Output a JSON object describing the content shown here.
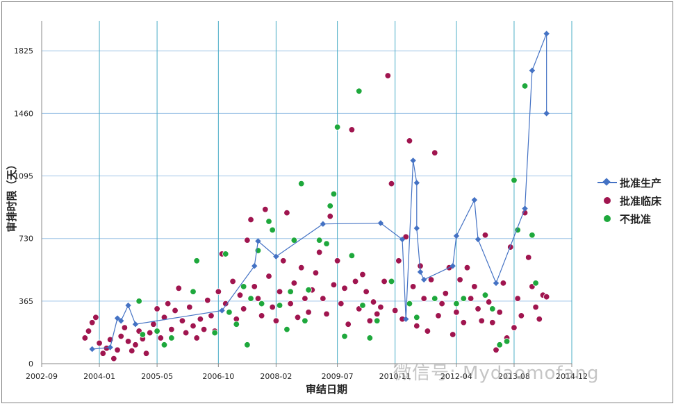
{
  "chart_data": {
    "type": "scatter",
    "xlabel": "审结日期",
    "ylabel": "审排时限（天）",
    "x_ticks": [
      "2002-09",
      "2004-01",
      "2005-05",
      "2006-10",
      "2008-02",
      "2009-07",
      "2010-11",
      "2012-04",
      "2013-08",
      "2014-12"
    ],
    "y_ticks": [
      0,
      365,
      730,
      1095,
      1460,
      1825
    ],
    "xlim": [
      "2002-09",
      "2014-12"
    ],
    "ylim": [
      0,
      2000
    ],
    "grid": {
      "x": true,
      "y": true
    },
    "legend_position": "right",
    "series": [
      {
        "name": "批准生产",
        "style": "line-diamond",
        "color": "#4472c4",
        "points": [
          [
            "2003-11",
            85
          ],
          [
            "2004-04",
            95
          ],
          [
            "2004-06",
            265
          ],
          [
            "2004-07",
            250
          ],
          [
            "2004-09",
            340
          ],
          [
            "2004-11",
            230
          ],
          [
            "2006-11",
            310
          ],
          [
            "2007-08",
            570
          ],
          [
            "2007-09",
            715
          ],
          [
            "2008-02",
            625
          ],
          [
            "2009-03",
            815
          ],
          [
            "2010-07",
            820
          ],
          [
            "2011-01",
            725
          ],
          [
            "2011-02",
            260
          ],
          [
            "2011-04",
            1185
          ],
          [
            "2011-05",
            1055
          ],
          [
            "2011-05",
            790
          ],
          [
            "2011-06",
            535
          ],
          [
            "2011-07",
            490
          ],
          [
            "2012-03",
            570
          ],
          [
            "2012-04",
            745
          ],
          [
            "2012-09",
            955
          ],
          [
            "2012-10",
            725
          ],
          [
            "2013-03",
            470
          ],
          [
            "2013-11",
            905
          ],
          [
            "2014-01",
            1710
          ],
          [
            "2014-05",
            1925
          ],
          [
            "2014-05",
            1460
          ]
        ]
      },
      {
        "name": "批准临床",
        "style": "dot",
        "color": "#a0154f",
        "points": [
          [
            "2003-09",
            150
          ],
          [
            "2003-10",
            190
          ],
          [
            "2003-11",
            240
          ],
          [
            "2003-12",
            270
          ],
          [
            "2004-01",
            120
          ],
          [
            "2004-02",
            60
          ],
          [
            "2004-03",
            90
          ],
          [
            "2004-04",
            140
          ],
          [
            "2004-05",
            30
          ],
          [
            "2004-06",
            80
          ],
          [
            "2004-07",
            160
          ],
          [
            "2004-08",
            210
          ],
          [
            "2004-09",
            130
          ],
          [
            "2004-10",
            75
          ],
          [
            "2004-11",
            110
          ],
          [
            "2004-12",
            190
          ],
          [
            "2005-01",
            145
          ],
          [
            "2005-02",
            60
          ],
          [
            "2005-03",
            180
          ],
          [
            "2005-04",
            230
          ],
          [
            "2005-05",
            320
          ],
          [
            "2005-06",
            150
          ],
          [
            "2005-07",
            270
          ],
          [
            "2005-08",
            350
          ],
          [
            "2005-09",
            200
          ],
          [
            "2005-10",
            310
          ],
          [
            "2005-11",
            440
          ],
          [
            "2005-12",
            250
          ],
          [
            "2006-01",
            180
          ],
          [
            "2006-02",
            330
          ],
          [
            "2006-03",
            220
          ],
          [
            "2006-04",
            150
          ],
          [
            "2006-05",
            260
          ],
          [
            "2006-06",
            200
          ],
          [
            "2006-07",
            370
          ],
          [
            "2006-08",
            280
          ],
          [
            "2006-09",
            190
          ],
          [
            "2006-10",
            420
          ],
          [
            "2006-11",
            640
          ],
          [
            "2006-12",
            350
          ],
          [
            "2007-01",
            300
          ],
          [
            "2007-02",
            480
          ],
          [
            "2007-03",
            260
          ],
          [
            "2007-04",
            400
          ],
          [
            "2007-05",
            320
          ],
          [
            "2007-06",
            720
          ],
          [
            "2007-07",
            840
          ],
          [
            "2007-08",
            450
          ],
          [
            "2007-09",
            380
          ],
          [
            "2007-10",
            280
          ],
          [
            "2007-11",
            900
          ],
          [
            "2007-12",
            510
          ],
          [
            "2008-01",
            330
          ],
          [
            "2008-02",
            250
          ],
          [
            "2008-03",
            420
          ],
          [
            "2008-04",
            600
          ],
          [
            "2008-05",
            880
          ],
          [
            "2008-06",
            350
          ],
          [
            "2008-07",
            470
          ],
          [
            "2008-08",
            270
          ],
          [
            "2008-09",
            560
          ],
          [
            "2008-10",
            380
          ],
          [
            "2008-11",
            300
          ],
          [
            "2008-12",
            430
          ],
          [
            "2009-01",
            530
          ],
          [
            "2009-02",
            650
          ],
          [
            "2009-03",
            380
          ],
          [
            "2009-04",
            290
          ],
          [
            "2009-05",
            860
          ],
          [
            "2009-06",
            460
          ],
          [
            "2009-07",
            600
          ],
          [
            "2009-08",
            350
          ],
          [
            "2009-09",
            440
          ],
          [
            "2009-10",
            230
          ],
          [
            "2009-11",
            1365
          ],
          [
            "2009-12",
            480
          ],
          [
            "2010-01",
            320
          ],
          [
            "2010-02",
            520
          ],
          [
            "2010-03",
            420
          ],
          [
            "2010-04",
            250
          ],
          [
            "2010-05",
            360
          ],
          [
            "2010-06",
            290
          ],
          [
            "2010-07",
            330
          ],
          [
            "2010-08",
            480
          ],
          [
            "2010-09",
            1680
          ],
          [
            "2010-10",
            1050
          ],
          [
            "2010-11",
            310
          ],
          [
            "2010-12",
            600
          ],
          [
            "2011-01",
            260
          ],
          [
            "2011-02",
            740
          ],
          [
            "2011-03",
            1300
          ],
          [
            "2011-04",
            450
          ],
          [
            "2011-05",
            220
          ],
          [
            "2011-06",
            570
          ],
          [
            "2011-07",
            380
          ],
          [
            "2011-08",
            190
          ],
          [
            "2011-09",
            490
          ],
          [
            "2011-10",
            1230
          ],
          [
            "2011-11",
            280
          ],
          [
            "2011-12",
            350
          ],
          [
            "2012-01",
            410
          ],
          [
            "2012-02",
            560
          ],
          [
            "2012-03",
            170
          ],
          [
            "2012-04",
            300
          ],
          [
            "2012-05",
            490
          ],
          [
            "2012-06",
            240
          ],
          [
            "2012-07",
            560
          ],
          [
            "2012-08",
            380
          ],
          [
            "2012-09",
            450
          ],
          [
            "2012-10",
            320
          ],
          [
            "2012-11",
            250
          ],
          [
            "2012-12",
            750
          ],
          [
            "2013-01",
            360
          ],
          [
            "2013-02",
            240
          ],
          [
            "2013-03",
            80
          ],
          [
            "2013-04",
            300
          ],
          [
            "2013-05",
            470
          ],
          [
            "2013-06",
            150
          ],
          [
            "2013-07",
            680
          ],
          [
            "2013-08",
            210
          ],
          [
            "2013-09",
            380
          ],
          [
            "2013-10",
            280
          ],
          [
            "2013-11",
            880
          ],
          [
            "2013-12",
            620
          ],
          [
            "2014-01",
            450
          ],
          [
            "2014-02",
            330
          ],
          [
            "2014-03",
            260
          ],
          [
            "2014-04",
            400
          ],
          [
            "2014-05",
            390
          ]
        ]
      },
      {
        "name": "不批准",
        "style": "dot",
        "color": "#1ea83c",
        "points": [
          [
            "2004-12",
            365
          ],
          [
            "2005-01",
            170
          ],
          [
            "2005-05",
            190
          ],
          [
            "2005-07",
            110
          ],
          [
            "2005-09",
            150
          ],
          [
            "2006-03",
            420
          ],
          [
            "2006-04",
            600
          ],
          [
            "2006-09",
            180
          ],
          [
            "2006-12",
            640
          ],
          [
            "2007-01",
            300
          ],
          [
            "2007-03",
            230
          ],
          [
            "2007-05",
            450
          ],
          [
            "2007-06",
            110
          ],
          [
            "2007-07",
            380
          ],
          [
            "2007-09",
            660
          ],
          [
            "2007-10",
            350
          ],
          [
            "2007-12",
            830
          ],
          [
            "2008-01",
            780
          ],
          [
            "2008-03",
            340
          ],
          [
            "2008-05",
            200
          ],
          [
            "2008-06",
            420
          ],
          [
            "2008-07",
            720
          ],
          [
            "2008-09",
            1050
          ],
          [
            "2008-10",
            250
          ],
          [
            "2008-11",
            430
          ],
          [
            "2009-02",
            720
          ],
          [
            "2009-04",
            700
          ],
          [
            "2009-05",
            920
          ],
          [
            "2009-06",
            990
          ],
          [
            "2009-07",
            1380
          ],
          [
            "2009-09",
            160
          ],
          [
            "2009-11",
            630
          ],
          [
            "2010-01",
            1590
          ],
          [
            "2010-02",
            340
          ],
          [
            "2010-04",
            150
          ],
          [
            "2010-06",
            250
          ],
          [
            "2010-10",
            480
          ],
          [
            "2011-03",
            350
          ],
          [
            "2011-05",
            270
          ],
          [
            "2011-10",
            380
          ],
          [
            "2012-04",
            350
          ],
          [
            "2012-06",
            380
          ],
          [
            "2012-12",
            400
          ],
          [
            "2013-02",
            320
          ],
          [
            "2013-04",
            110
          ],
          [
            "2013-06",
            130
          ],
          [
            "2013-08",
            1070
          ],
          [
            "2013-09",
            780
          ],
          [
            "2013-11",
            1620
          ],
          [
            "2014-02",
            470
          ],
          [
            "2014-01",
            750
          ]
        ]
      }
    ]
  },
  "watermark": "微信号: Mydaomofang"
}
